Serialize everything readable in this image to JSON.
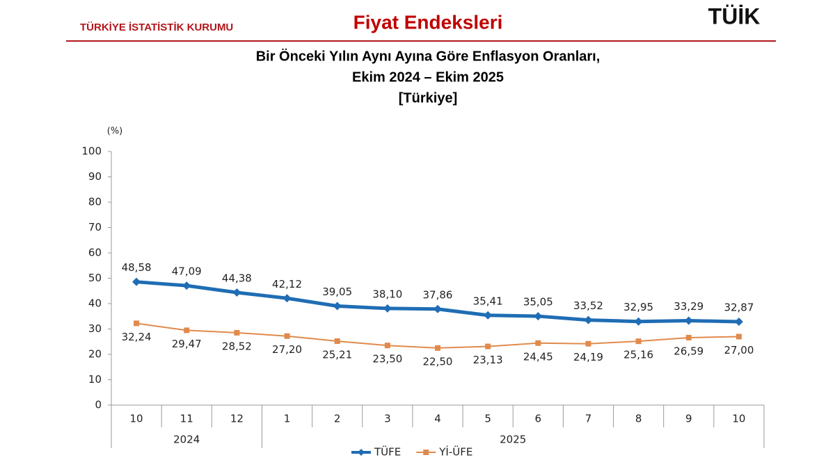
{
  "header": {
    "organization": "TÜRKİYE İSTATİSTİK KURUMU",
    "section": "Fiyat Endeksleri",
    "logo": "TÜİK"
  },
  "chart_data": {
    "type": "line",
    "title_lines": [
      "Bir Önceki Yılın Aynı Ayına Göre Enflasyon Oranları,",
      "Ekim 2024  – Ekim 2025",
      "[Türkiye]"
    ],
    "y_unit": "(%)",
    "categories": [
      "10",
      "11",
      "12",
      "1",
      "2",
      "3",
      "4",
      "5",
      "6",
      "7",
      "8",
      "9",
      "10"
    ],
    "category_years": [
      "2024",
      "2024",
      "2024",
      "2025",
      "2025",
      "2025",
      "2025",
      "2025",
      "2025",
      "2025",
      "2025",
      "2025",
      "2025"
    ],
    "ylim": [
      0,
      100
    ],
    "yticks": [
      0,
      10,
      20,
      30,
      40,
      50,
      60,
      70,
      80,
      90,
      100
    ],
    "grid": false,
    "legend": "bottom",
    "series": [
      {
        "name": "TÜFE",
        "color": "#1f6db4",
        "marker": "diamond",
        "label_position": "above",
        "values": [
          48.58,
          47.09,
          44.38,
          42.12,
          39.05,
          38.1,
          37.86,
          35.41,
          35.05,
          33.52,
          32.95,
          33.29,
          32.87
        ],
        "value_labels": [
          "48,58",
          "47,09",
          "44,38",
          "42,12",
          "39,05",
          "38,10",
          "37,86",
          "35,41",
          "35,05",
          "33,52",
          "32,95",
          "33,29",
          "32,87"
        ]
      },
      {
        "name": "Yİ-ÜFE",
        "color": "#e08a4c",
        "marker": "square",
        "label_position": "below",
        "values": [
          32.24,
          29.47,
          28.52,
          27.2,
          25.21,
          23.5,
          22.5,
          23.13,
          24.45,
          24.19,
          25.16,
          26.59,
          27.0
        ],
        "value_labels": [
          "32,24",
          "29,47",
          "28,52",
          "27,20",
          "25,21",
          "23,50",
          "22,50",
          "23,13",
          "24,45",
          "24,19",
          "25,16",
          "26,59",
          "27,00"
        ]
      }
    ]
  }
}
